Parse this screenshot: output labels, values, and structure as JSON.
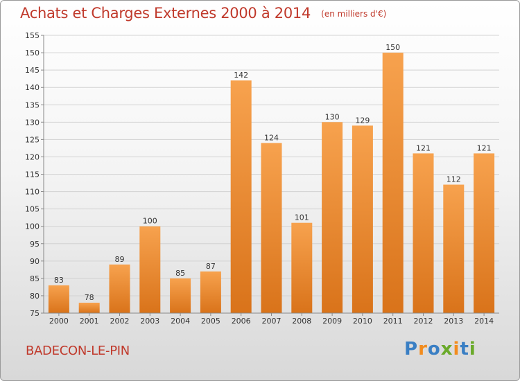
{
  "header": {
    "title": "Achats et Charges Externes 2000 à 2014",
    "unit": "(en milliers d'€)"
  },
  "footer": {
    "commune": "BADECON-LE-PIN",
    "brand": [
      "P",
      "r",
      "o",
      "x",
      "i",
      "t",
      "i"
    ]
  },
  "colors": {
    "title": "#c0392b",
    "bar_light": "#f7a24e",
    "bar_dark": "#d9731a",
    "brand_blue": "#3a7fc4",
    "brand_orange": "#f28c1e",
    "brand_green": "#6aaa2a"
  },
  "chart_data": {
    "type": "bar",
    "categories": [
      "2000",
      "2001",
      "2002",
      "2003",
      "2004",
      "2005",
      "2006",
      "2007",
      "2008",
      "2009",
      "2010",
      "2011",
      "2012",
      "2013",
      "2014"
    ],
    "values": [
      83,
      78,
      89,
      100,
      85,
      87,
      142,
      124,
      101,
      130,
      129,
      150,
      121,
      112,
      121
    ],
    "data_labels": [
      "83",
      "78",
      "89",
      "100",
      "85",
      "87",
      "142",
      "124",
      "101",
      "130",
      "129",
      "150",
      "121",
      "112",
      "121"
    ],
    "title": "Achats et Charges Externes 2000 à 2014",
    "subtitle": "(en milliers d'€)",
    "xlabel": "",
    "ylabel": "",
    "ylim": [
      75,
      155
    ],
    "yticks": [
      75,
      80,
      85,
      90,
      95,
      100,
      105,
      110,
      115,
      120,
      125,
      130,
      135,
      140,
      145,
      150,
      155
    ],
    "grid": true
  }
}
